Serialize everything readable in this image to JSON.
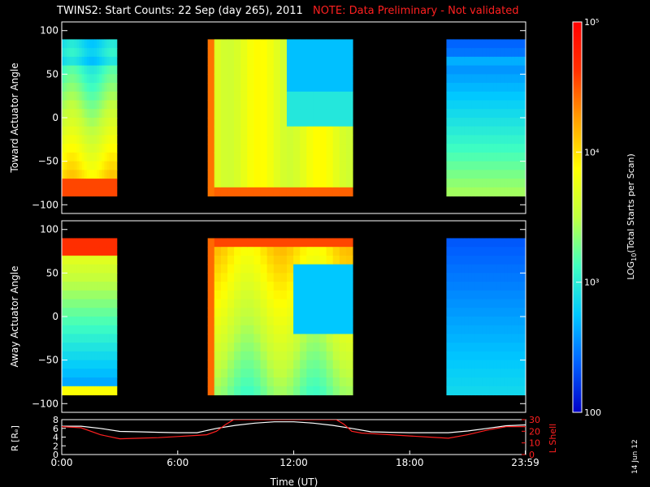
{
  "header": {
    "title": "TWINS2: Start Counts: 22 Sep (day 265), 2011",
    "note": "NOTE: Data Preliminary - Not validated"
  },
  "datestamp": "14 Jun 12",
  "colors": {
    "background": "#000000",
    "note": "#ff2020",
    "r_line": "#ffffff",
    "lshell_line": "#ff2020"
  },
  "chart_data": [
    {
      "type": "heatmap",
      "title": "",
      "ylabel": "Toward Actuator Angle",
      "ylim": [
        -110,
        110
      ],
      "yticks": [
        "100",
        "50",
        "0",
        "−50",
        "−100"
      ],
      "y_tick_values": [
        100,
        50,
        0,
        -50,
        -100
      ],
      "x_range_hours": [
        0,
        24
      ],
      "xticks": [],
      "z_scale": "log10",
      "data_segments_hours": [
        [
          0.0,
          2.85
        ],
        [
          7.55,
          15.05
        ],
        [
          19.9,
          24.0
        ]
      ],
      "gap_color": "black"
    },
    {
      "type": "heatmap",
      "title": "",
      "ylabel": "Away Actuator Angle",
      "ylim": [
        -110,
        110
      ],
      "yticks": [
        "100",
        "50",
        "0",
        "−50",
        "−100"
      ],
      "y_tick_values": [
        100,
        50,
        0,
        -50,
        -100
      ],
      "x_range_hours": [
        0,
        24
      ],
      "xticks": [],
      "z_scale": "log10",
      "data_segments_hours": [
        [
          0.0,
          2.85
        ],
        [
          7.55,
          15.05
        ],
        [
          19.9,
          24.0
        ]
      ],
      "gap_color": "black"
    },
    {
      "type": "line",
      "xlabel": "Time (UT)",
      "ylabel_left": "R [Rₑ]",
      "ylabel_right": "L Shell",
      "xlim_hours": [
        0,
        24
      ],
      "xticks": [
        "0:00",
        "6:00",
        "12:00",
        "18:00",
        "23:59"
      ],
      "xtick_hours": [
        0,
        6,
        12,
        18,
        23.98
      ],
      "yticks_left": [
        "8",
        "6",
        "4",
        "2",
        "0"
      ],
      "ylim_left": [
        0,
        8
      ],
      "yticks_right": [
        "30",
        "20",
        "10",
        "0"
      ],
      "ylim_right": [
        0,
        30
      ],
      "series": [
        {
          "name": "R",
          "x": [
            0,
            1,
            2,
            3,
            4,
            5,
            6,
            7,
            8,
            9,
            10,
            11,
            12,
            13,
            14,
            15,
            16,
            17,
            18,
            19,
            20,
            21,
            22,
            23,
            24
          ],
          "y": [
            6.5,
            6.5,
            6.0,
            5.3,
            5.2,
            5.1,
            5.0,
            5.0,
            6.0,
            6.7,
            7.2,
            7.5,
            7.5,
            7.2,
            6.7,
            6.0,
            5.2,
            5.1,
            5.0,
            5.0,
            5.0,
            5.4,
            6.0,
            6.6,
            6.8
          ]
        },
        {
          "name": "L Shell",
          "x": [
            0,
            1,
            2,
            3,
            4,
            5,
            6,
            7,
            7.5,
            8,
            8.5,
            8.9,
            14.2,
            14.6,
            15,
            15.5,
            16,
            17,
            18,
            19,
            20,
            21,
            22,
            23,
            24
          ],
          "y": [
            24,
            23,
            17,
            13.5,
            14,
            14.5,
            15.5,
            16.5,
            17,
            20,
            26,
            30,
            30,
            26,
            20,
            18.5,
            18,
            17,
            16,
            15,
            14,
            17,
            21,
            24,
            24
          ]
        }
      ]
    }
  ],
  "colorbar": {
    "label": "LOG10(Total Starts per Scan)",
    "label_main": "LOG",
    "label_sub": "10",
    "label_rest": "(Total Starts per Scan)",
    "ticks": [
      "10⁵",
      "10⁴",
      "10³",
      "100"
    ],
    "tick_exponents": [
      5,
      4,
      3,
      2
    ],
    "range_log10": [
      2,
      5
    ],
    "stops": [
      "#0000c8",
      "#0060ff",
      "#00c8ff",
      "#40ffc0",
      "#c0ff40",
      "#ffff00",
      "#ffa000",
      "#ff3000",
      "#ff0000"
    ]
  }
}
